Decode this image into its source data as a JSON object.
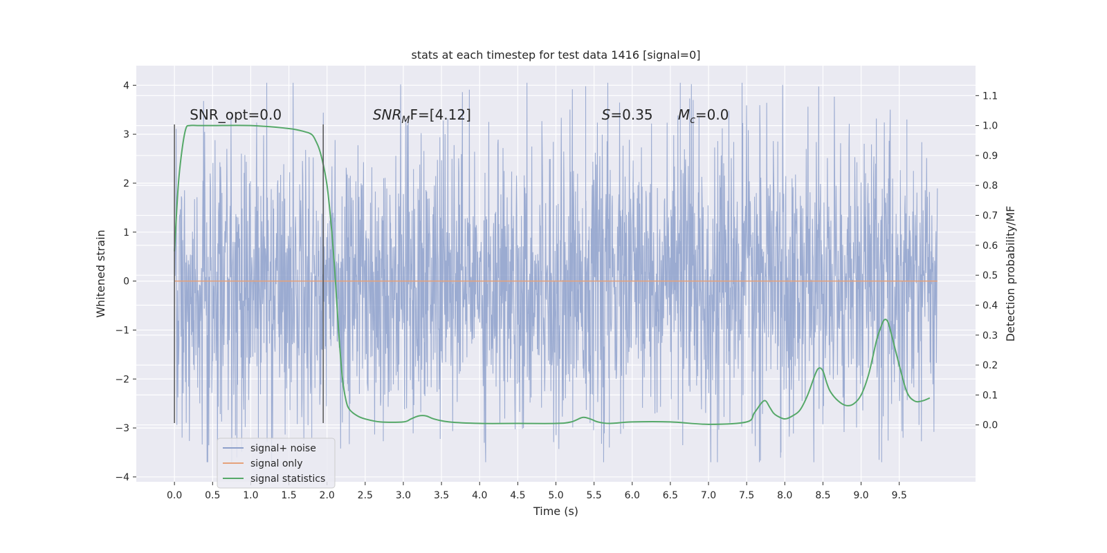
{
  "chart_data": {
    "type": "line",
    "title": "stats at each timestep for test data 1416 [signal=0]",
    "xlabel": "Time (s)",
    "ylabel": "Whitened strain",
    "ylabel_right": "Detection probability/MF",
    "xlim": [
      -0.5,
      10.5
    ],
    "ylim": [
      -4.1,
      4.4
    ],
    "ylim_right": [
      -0.19,
      1.2
    ],
    "x_ticks": [
      0.0,
      0.5,
      1.0,
      1.5,
      2.0,
      2.5,
      3.0,
      3.5,
      4.0,
      4.5,
      5.0,
      5.5,
      6.0,
      6.5,
      7.0,
      7.5,
      8.0,
      8.5,
      9.0,
      9.5
    ],
    "x_tick_labels": [
      "0.0",
      "0.5",
      "1.0",
      "1.5",
      "2.0",
      "2.5",
      "3.0",
      "3.5",
      "4.0",
      "4.5",
      "5.0",
      "5.5",
      "6.0",
      "6.5",
      "7.0",
      "7.5",
      "8.0",
      "8.5",
      "9.0",
      "9.5"
    ],
    "y_ticks": [
      -4,
      -3,
      -2,
      -1,
      0,
      1,
      2,
      3,
      4
    ],
    "y_tick_labels": [
      "−4",
      "−3",
      "−2",
      "−1",
      "0",
      "1",
      "2",
      "3",
      "4"
    ],
    "y_ticks_right": [
      0.0,
      0.1,
      0.2,
      0.3,
      0.4,
      0.5,
      0.6,
      0.7,
      0.8,
      0.9,
      1.0,
      1.1
    ],
    "y_tick_labels_right": [
      "0.0",
      "0.1",
      "0.2",
      "0.3",
      "0.4",
      "0.5",
      "0.6",
      "0.7",
      "0.8",
      "0.9",
      "1.0",
      "1.1"
    ],
    "grid": true,
    "legend_position": "lower-left",
    "series": [
      {
        "name": "signal+ noise",
        "axis": "left",
        "color": "#8da0cb",
        "x_range": [
          0.0,
          10.0
        ],
        "envelope": {
          "typical_range": [
            -1.6,
            1.6
          ],
          "min": -3.7,
          "max": 4.05
        }
      },
      {
        "name": "signal only",
        "axis": "left",
        "color": "#e5a17a",
        "x": [
          0.0,
          10.0
        ],
        "y": [
          0.0,
          0.0
        ]
      },
      {
        "name": "signal statistics",
        "axis": "right",
        "color": "#55a868",
        "x": [
          0.0,
          0.05,
          0.1,
          0.15,
          0.2,
          0.3,
          0.5,
          1.0,
          1.5,
          1.7,
          1.8,
          1.85,
          1.9,
          1.95,
          2.0,
          2.05,
          2.1,
          2.15,
          2.2,
          2.25,
          2.3,
          2.4,
          2.5,
          2.7,
          3.0,
          3.1,
          3.2,
          3.3,
          3.4,
          3.6,
          4.0,
          4.5,
          5.0,
          5.2,
          5.35,
          5.45,
          5.55,
          5.7,
          6.0,
          6.5,
          7.0,
          7.5,
          7.6,
          7.7,
          7.75,
          7.8,
          7.85,
          7.9,
          8.0,
          8.1,
          8.2,
          8.3,
          8.4,
          8.45,
          8.5,
          8.55,
          8.6,
          8.7,
          8.8,
          8.9,
          9.0,
          9.1,
          9.2,
          9.25,
          9.3,
          9.35,
          9.4,
          9.5,
          9.6,
          9.7,
          9.8,
          9.9
        ],
        "y": [
          0.58,
          0.8,
          0.92,
          0.99,
          1.0,
          1.0,
          1.0,
          1.0,
          0.99,
          0.98,
          0.97,
          0.95,
          0.92,
          0.87,
          0.8,
          0.68,
          0.52,
          0.32,
          0.16,
          0.08,
          0.05,
          0.03,
          0.02,
          0.01,
          0.01,
          0.02,
          0.03,
          0.03,
          0.02,
          0.01,
          0.005,
          0.005,
          0.005,
          0.01,
          0.025,
          0.02,
          0.01,
          0.005,
          0.01,
          0.01,
          0.002,
          0.01,
          0.04,
          0.075,
          0.08,
          0.06,
          0.04,
          0.03,
          0.02,
          0.03,
          0.05,
          0.1,
          0.17,
          0.19,
          0.18,
          0.14,
          0.11,
          0.08,
          0.065,
          0.07,
          0.1,
          0.17,
          0.28,
          0.32,
          0.35,
          0.345,
          0.3,
          0.2,
          0.11,
          0.08,
          0.08,
          0.09
        ]
      }
    ],
    "vlines": [
      {
        "x": 0.0,
        "y_range": [
          -2.9,
          3.2
        ]
      },
      {
        "x": 1.95,
        "y_range": [
          -2.9,
          3.2
        ]
      }
    ],
    "annotations": [
      {
        "text": "SNR_opt=0.0",
        "x": 0.2,
        "y": 3.3
      },
      {
        "text_main": "SNR",
        "text_sub": "M",
        "text_tail": "F=[4.12]",
        "x": 2.6,
        "y": 3.3
      },
      {
        "text_main": "S",
        "text_tail": "=0.35",
        "x": 5.6,
        "y": 3.3
      },
      {
        "text_main": "M",
        "text_sub": "c",
        "text_tail": "=0.0",
        "x": 6.6,
        "y": 3.3
      }
    ]
  }
}
